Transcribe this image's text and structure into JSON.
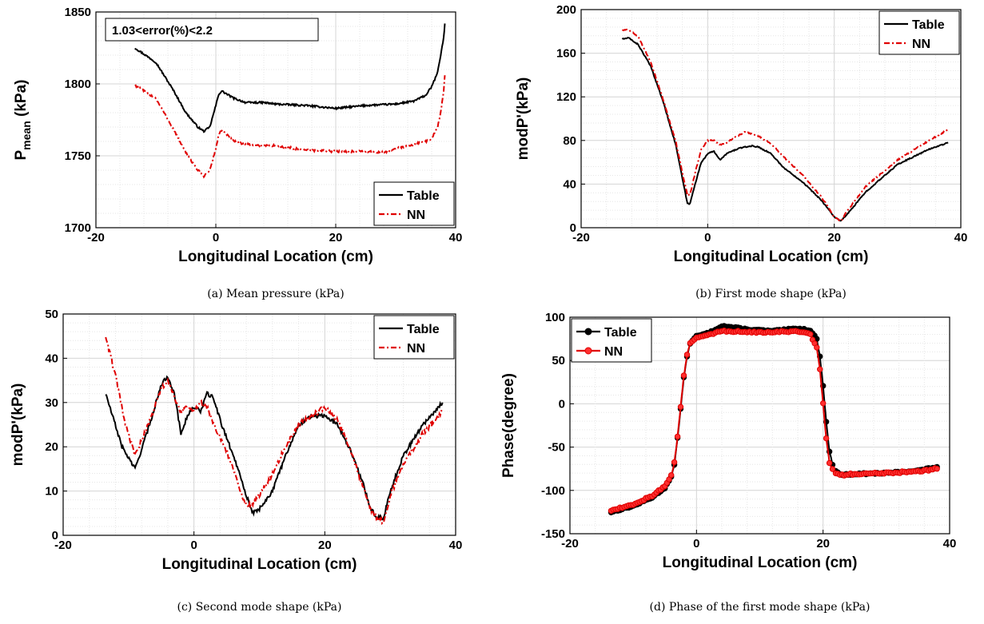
{
  "chart_data": [
    {
      "id": "a",
      "type": "line",
      "caption": "(a) Mean pressure (kPa)",
      "xlabel": "Longitudinal Location (cm)",
      "ylabel_main": "P",
      "ylabel_sub": "mean",
      "ylabel_tail": " (kPa)",
      "xlim": [
        -20,
        40
      ],
      "ylim": [
        1700,
        1850
      ],
      "xticks": [
        -20,
        0,
        20,
        40
      ],
      "yticks": [
        1700,
        1750,
        1800,
        1850
      ],
      "grid": true,
      "legend_position": "bottom-right",
      "annotation": "1.03<error(%)<2.2",
      "series": [
        {
          "name": "Table",
          "color": "#000000",
          "dash": "solid",
          "noise": 1.2,
          "x": [
            -13.5,
            -10,
            -7,
            -5,
            -3,
            -2,
            -1,
            0,
            0.5,
            1,
            3,
            5,
            8,
            10,
            15,
            20,
            25,
            30,
            33,
            35,
            36,
            37,
            37.5,
            38,
            38.2
          ],
          "y": [
            1825,
            1815,
            1795,
            1780,
            1770,
            1767,
            1770,
            1785,
            1793,
            1795,
            1790,
            1787,
            1787,
            1786,
            1785,
            1783,
            1785,
            1786,
            1788,
            1792,
            1798,
            1808,
            1820,
            1832,
            1842
          ]
        },
        {
          "name": "NN",
          "color": "#e00000",
          "dash": "dashed",
          "noise": 1.5,
          "x": [
            -13.5,
            -10,
            -7,
            -5,
            -3,
            -2,
            -1,
            0,
            0.5,
            1,
            3,
            5,
            8,
            10,
            15,
            20,
            25,
            28,
            30,
            33,
            35,
            36,
            37,
            37.5,
            38,
            38.2
          ],
          "y": [
            1799,
            1790,
            1768,
            1752,
            1740,
            1736,
            1740,
            1755,
            1765,
            1768,
            1760,
            1758,
            1757,
            1757,
            1754,
            1753,
            1753,
            1752,
            1755,
            1758,
            1760,
            1762,
            1770,
            1780,
            1795,
            1806
          ]
        }
      ]
    },
    {
      "id": "b",
      "type": "line",
      "caption": "(b) First mode shape (kPa)",
      "xlabel": "Longitudinal Location (cm)",
      "ylabel": "modP'(kPa)",
      "xlim": [
        -20,
        40
      ],
      "ylim": [
        0,
        200
      ],
      "xticks": [
        -20,
        0,
        20,
        40
      ],
      "yticks": [
        0,
        40,
        80,
        120,
        160,
        200
      ],
      "grid": true,
      "legend_position": "top-right",
      "series": [
        {
          "name": "Table",
          "color": "#000000",
          "dash": "solid",
          "noise": 1.0,
          "x": [
            -13.5,
            -12.5,
            -11,
            -9,
            -7,
            -5,
            -4,
            -3.2,
            -2.8,
            -2,
            -1,
            0,
            1,
            2,
            3,
            5,
            7,
            8,
            10,
            12,
            15,
            18,
            20,
            21,
            22,
            25,
            30,
            35,
            38
          ],
          "y": [
            173,
            174,
            168,
            148,
            115,
            75,
            45,
            22,
            22,
            40,
            60,
            68,
            70,
            62,
            68,
            73,
            75,
            74,
            68,
            55,
            42,
            25,
            10,
            6,
            12,
            33,
            58,
            72,
            78
          ]
        },
        {
          "name": "NN",
          "color": "#e00000",
          "dash": "dashed",
          "noise": 1.2,
          "x": [
            -13.5,
            -12.5,
            -11,
            -9,
            -7,
            -5,
            -4,
            -3.2,
            -2.8,
            -2,
            -1,
            0,
            1,
            2,
            3,
            5,
            6,
            7,
            8,
            10,
            12,
            15,
            18,
            20,
            21,
            22,
            25,
            30,
            35,
            38
          ],
          "y": [
            181,
            182,
            175,
            152,
            117,
            78,
            50,
            30,
            30,
            50,
            72,
            80,
            80,
            76,
            78,
            85,
            88,
            86,
            84,
            77,
            65,
            48,
            28,
            10,
            6,
            15,
            38,
            62,
            80,
            90
          ]
        }
      ]
    },
    {
      "id": "c",
      "type": "line",
      "caption": "(c) Second mode shape (kPa)",
      "xlabel": "Longitudinal Location (cm)",
      "ylabel": "modP'(kPa)",
      "xlim": [
        -20,
        40
      ],
      "ylim": [
        0,
        50
      ],
      "xticks": [
        -20,
        0,
        20,
        40
      ],
      "yticks": [
        0,
        10,
        20,
        30,
        40,
        50
      ],
      "grid": true,
      "legend_position": "top-right",
      "series": [
        {
          "name": "Table",
          "color": "#000000",
          "dash": "solid",
          "noise": 0.9,
          "x": [
            -13.5,
            -11,
            -9,
            -7,
            -5,
            -4,
            -3,
            -2,
            -1,
            0,
            1,
            2,
            3,
            4,
            5,
            6,
            7,
            8,
            9,
            10,
            12,
            14,
            16,
            18,
            20,
            22,
            24,
            26,
            27,
            28,
            29,
            30,
            32,
            35,
            38
          ],
          "y": [
            32,
            20,
            15,
            24,
            34,
            36,
            32,
            23,
            27,
            29,
            28,
            32,
            31,
            26,
            22,
            18,
            14,
            9,
            5,
            6,
            10,
            18,
            25,
            27,
            27,
            25,
            19,
            11,
            6,
            4,
            4,
            10,
            18,
            25,
            30
          ]
        },
        {
          "name": "NN",
          "color": "#e00000",
          "dash": "dashed",
          "noise": 1.2,
          "x": [
            -13.5,
            -12,
            -10.5,
            -9,
            -7,
            -5,
            -4,
            -3,
            -2,
            -1,
            0,
            1,
            2,
            3,
            4,
            5,
            6,
            7,
            8,
            9,
            10,
            12,
            14,
            16,
            18,
            20,
            22,
            24,
            26,
            27,
            28,
            29,
            30,
            32,
            35,
            38
          ],
          "y": [
            45,
            36,
            25,
            18,
            25,
            33,
            35,
            31,
            28,
            29,
            28,
            30,
            29,
            25,
            22,
            19,
            15,
            10,
            7,
            7,
            9,
            14,
            20,
            25,
            27,
            29,
            26,
            19,
            10,
            6,
            4,
            3,
            9,
            16,
            23,
            28
          ]
        }
      ]
    },
    {
      "id": "d",
      "type": "line",
      "caption": "(d) Phase of the first mode shape (kPa)",
      "xlabel": "Longitudinal Location (cm)",
      "ylabel": "Phase(degree)",
      "xlim": [
        -20,
        40
      ],
      "ylim": [
        -150,
        100
      ],
      "xticks": [
        -20,
        0,
        20,
        40
      ],
      "yticks": [
        -150,
        -100,
        -50,
        0,
        50,
        100
      ],
      "grid": true,
      "legend_position": "top-left",
      "series": [
        {
          "name": "Table",
          "color": "#000000",
          "dash": "solid",
          "markers": true,
          "noise": 1.5,
          "x": [
            -13.5,
            -10,
            -7,
            -5,
            -4,
            -3.5,
            -3,
            -2.5,
            -2,
            -1.5,
            -1,
            0,
            1,
            2,
            4,
            8,
            12,
            16,
            18,
            19,
            19.5,
            20,
            20.5,
            21,
            21.5,
            22,
            23,
            25,
            30,
            35,
            38
          ],
          "y": [
            -125,
            -118,
            -108,
            -97,
            -85,
            -70,
            -40,
            -5,
            30,
            55,
            70,
            78,
            80,
            82,
            90,
            86,
            84,
            87,
            85,
            75,
            55,
            20,
            -20,
            -55,
            -70,
            -78,
            -82,
            -81,
            -80,
            -77,
            -73
          ]
        },
        {
          "name": "NN",
          "color": "#e00000",
          "dash": "solid",
          "markers": true,
          "noise": 2.0,
          "x": [
            -13.5,
            -10,
            -7,
            -5,
            -4,
            -3.5,
            -3,
            -2.5,
            -2,
            -1.5,
            -1,
            0,
            1,
            2,
            4,
            8,
            12,
            16,
            18,
            19,
            19.5,
            20,
            20.5,
            21,
            21.5,
            22,
            23,
            25,
            30,
            35,
            38
          ],
          "y": [
            -123,
            -116,
            -106,
            -95,
            -83,
            -68,
            -38,
            -3,
            32,
            56,
            70,
            76,
            78,
            80,
            84,
            83,
            83,
            84,
            80,
            65,
            40,
            0,
            -40,
            -68,
            -75,
            -80,
            -82,
            -81,
            -80,
            -78,
            -75
          ]
        }
      ]
    }
  ]
}
